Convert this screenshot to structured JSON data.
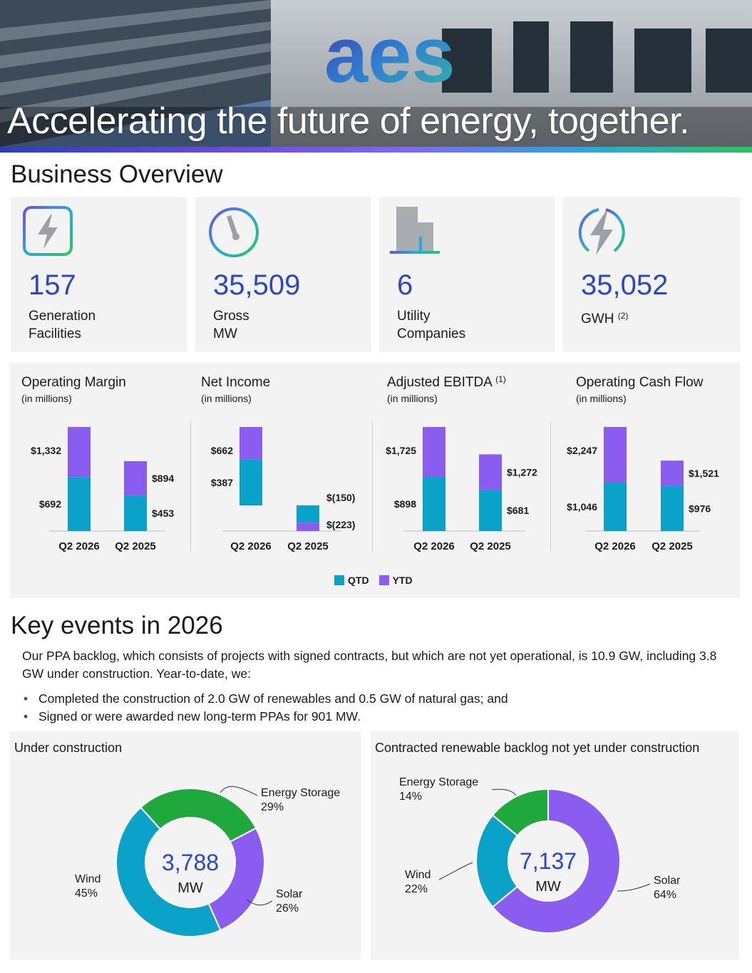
{
  "header": {
    "title": "Accelerating the future of energy, together.",
    "logo_text": "aes"
  },
  "business_overview": {
    "title": "Business Overview",
    "stats": [
      {
        "value": "157",
        "label_line1": "Generation",
        "label_line2": "Facilities",
        "note": "",
        "icon": "lightning-square-icon"
      },
      {
        "value": "35,509",
        "label_line1": "Gross",
        "label_line2": "MW",
        "note": "",
        "icon": "gauge-icon"
      },
      {
        "value": "6",
        "label_line1": "Utility",
        "label_line2": "Companies",
        "note": "",
        "icon": "building-icon"
      },
      {
        "value": "35,052",
        "label_line1": "GWH",
        "label_line2": "",
        "note": "(2)",
        "icon": "lightning-circle-icon"
      }
    ]
  },
  "colors": {
    "qtd": "#0aa2c8",
    "ytd": "#8b5cf0",
    "accent_blue": "#2b47c8",
    "energy_storage": "#1fa83c",
    "solar": "#8b5cf0",
    "wind": "#0aa2c8"
  },
  "chart_data": [
    {
      "type": "bar",
      "title": "Operating Margin",
      "title_note": "",
      "subtitle": "(in millions)",
      "categories": [
        "Q2 2026",
        "Q2 2025"
      ],
      "series": [
        {
          "name": "QTD",
          "values": [
            692,
            453
          ],
          "labels": [
            "$692",
            "$453"
          ]
        },
        {
          "name": "YTD",
          "values": [
            1332,
            894
          ],
          "labels": [
            "$1,332",
            "$894"
          ]
        }
      ]
    },
    {
      "type": "bar",
      "title": "Net Income",
      "title_note": "",
      "subtitle": "(in millions)",
      "categories": [
        "Q2 2026",
        "Q2 2025"
      ],
      "series": [
        {
          "name": "QTD",
          "values": [
            387,
            -150
          ],
          "labels": [
            "$387",
            "$(150)"
          ]
        },
        {
          "name": "YTD",
          "values": [
            662,
            -223
          ],
          "labels": [
            "$662",
            "$(223)"
          ]
        }
      ]
    },
    {
      "type": "bar",
      "title": "Adjusted EBITDA",
      "title_note": "(1)",
      "subtitle": "(in millions)",
      "categories": [
        "Q2 2026",
        "Q2 2025"
      ],
      "series": [
        {
          "name": "QTD",
          "values": [
            898,
            681
          ],
          "labels": [
            "$898",
            "$681"
          ]
        },
        {
          "name": "YTD",
          "values": [
            1725,
            1272
          ],
          "labels": [
            "$1,725",
            "$1,272"
          ]
        }
      ]
    },
    {
      "type": "bar",
      "title": "Operating Cash Flow",
      "title_note": "",
      "subtitle": "(in millions)",
      "categories": [
        "Q2 2026",
        "Q2 2025"
      ],
      "series": [
        {
          "name": "QTD",
          "values": [
            1046,
            976
          ],
          "labels": [
            "$1,046",
            "$976"
          ]
        },
        {
          "name": "YTD",
          "values": [
            2247,
            1521
          ],
          "labels": [
            "$2,247",
            "$1,521"
          ]
        }
      ]
    },
    {
      "type": "pie",
      "title": "Under construction",
      "total": "3,788",
      "unit": "MW",
      "slices": [
        {
          "name": "Energy Storage",
          "value": 29,
          "label": "29%"
        },
        {
          "name": "Solar",
          "value": 26,
          "label": "26%"
        },
        {
          "name": "Wind",
          "value": 45,
          "label": "45%"
        }
      ]
    },
    {
      "type": "pie",
      "title": "Contracted renewable backlog not yet under construction",
      "total": "7,137",
      "unit": "MW",
      "slices": [
        {
          "name": "Solar",
          "value": 64,
          "label": "64%"
        },
        {
          "name": "Wind",
          "value": 22,
          "label": "22%"
        },
        {
          "name": "Energy Storage",
          "value": 14,
          "label": "14%"
        }
      ]
    }
  ],
  "legend": [
    {
      "name": "QTD"
    },
    {
      "name": "YTD"
    }
  ],
  "key_events": {
    "title": "Key events in 2026",
    "paragraph": "Our PPA backlog, which consists of projects with signed contracts, but which are not yet operational, is 10.9 GW, including 3.8 GW under construction. Year-to-date, we:",
    "bullets": [
      "Completed the construction of 2.0 GW of renewables and 0.5 GW of natural gas; and",
      "Signed or were awarded new long-term PPAs for 901 MW."
    ]
  }
}
